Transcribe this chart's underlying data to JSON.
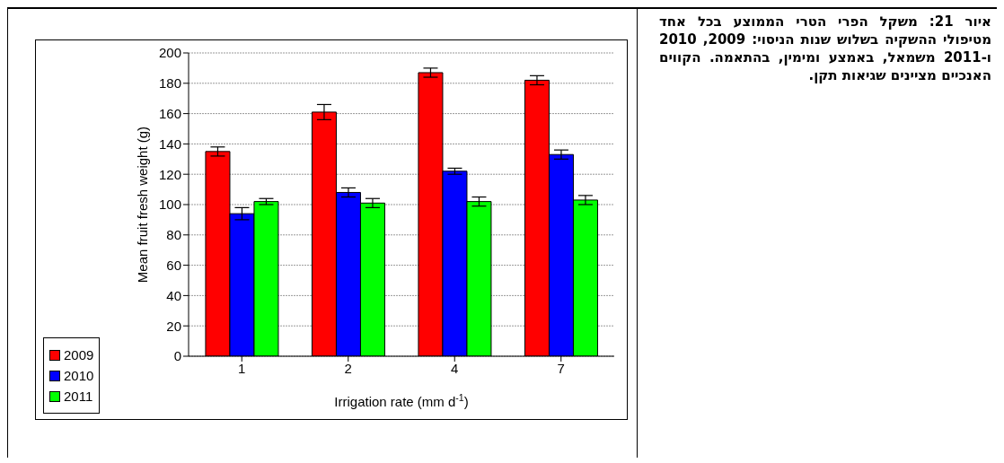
{
  "chart_data": {
    "type": "bar",
    "xlabel": "Irrigation rate (mm d$^{-1}$)",
    "ylabel": "Mean fruit fresh weight (g)",
    "categories": [
      "1",
      "2",
      "4",
      "7"
    ],
    "series": [
      {
        "name": "2009",
        "color": "#ff0000",
        "values": [
          135,
          161,
          187,
          182
        ],
        "errors": [
          3,
          5,
          3,
          3
        ]
      },
      {
        "name": "2010",
        "color": "#0000ff",
        "values": [
          94,
          108,
          122,
          133
        ],
        "errors": [
          4,
          3,
          2,
          3
        ]
      },
      {
        "name": "2011",
        "color": "#00ff00",
        "values": [
          102,
          101,
          102,
          103
        ],
        "errors": [
          2,
          3,
          3,
          3
        ]
      }
    ],
    "ylim": [
      0,
      200
    ],
    "yticks": [
      0,
      20,
      40,
      60,
      80,
      100,
      120,
      140,
      160,
      180,
      200
    ],
    "grid": "y",
    "legend": "bottom left",
    "annotations": [
      "איור 21: משקל הפרי הטרי הממוצע בכל אחד מטיפולי ההשקיה בשלוש שנות הניסוי: 2009, 2010 ו-2011 משמאל, באמצע ומימין, בהתאמה. הקווים האנכיים מציינים שגיאות תקן."
    ]
  }
}
